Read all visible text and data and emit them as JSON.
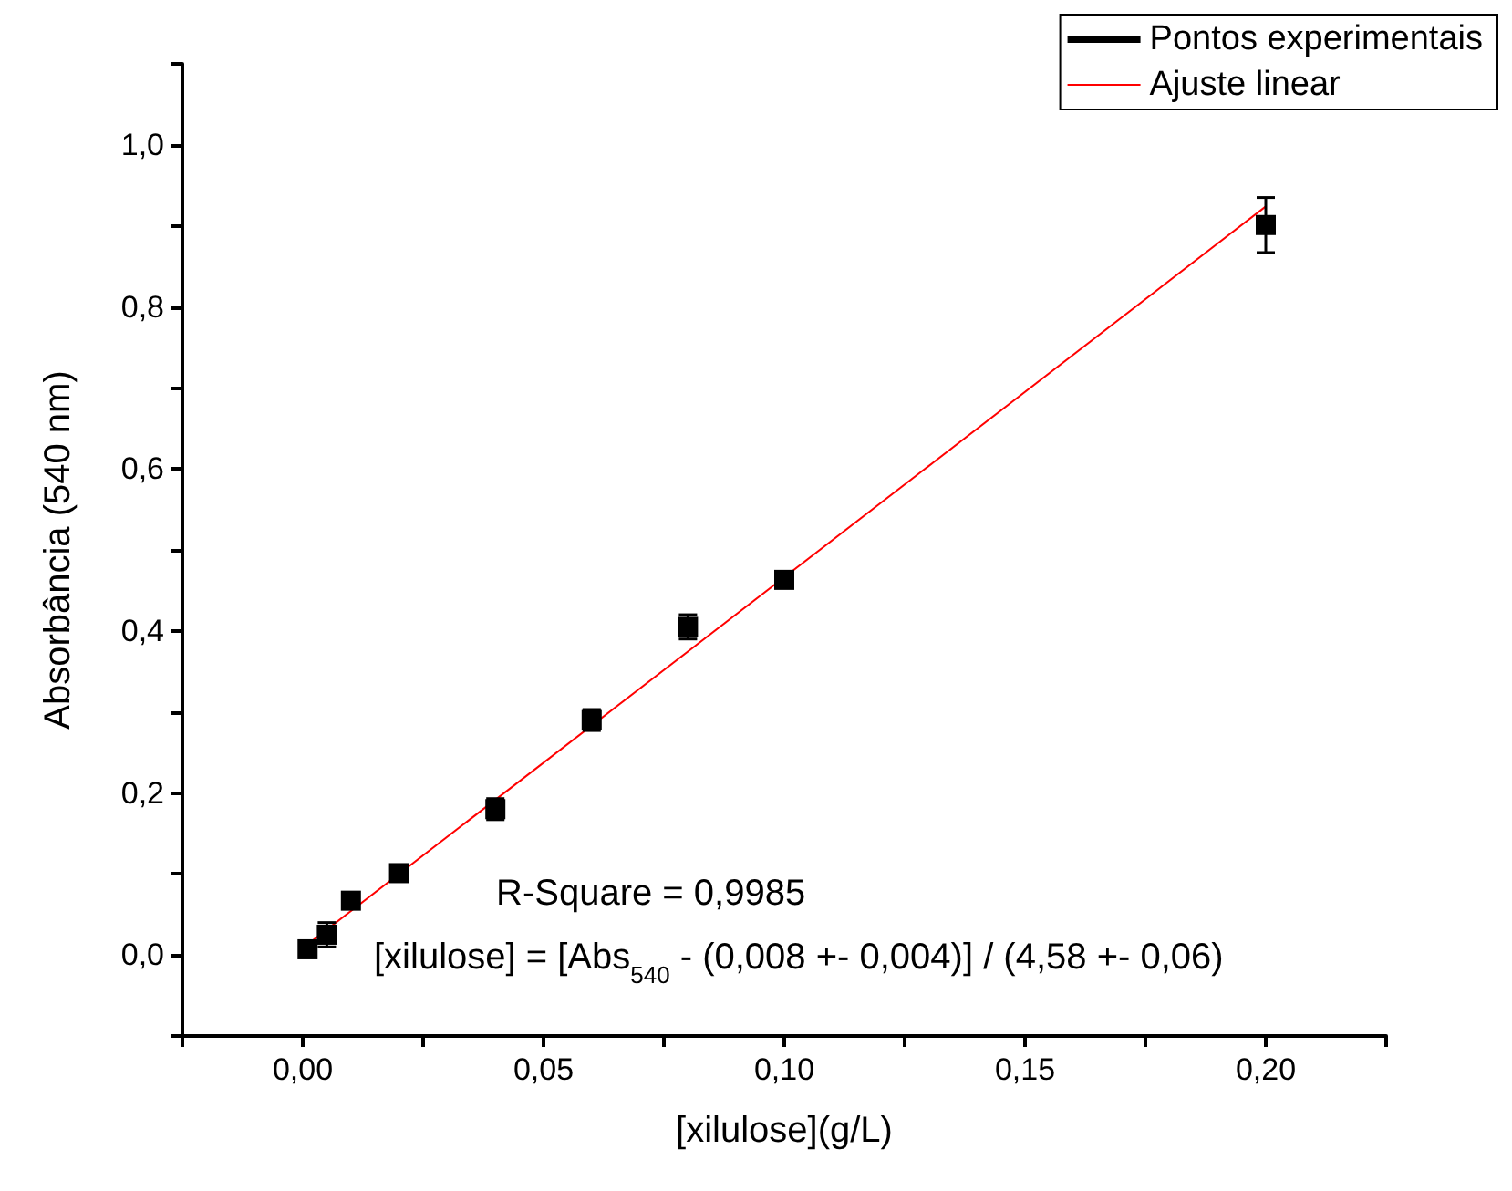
{
  "chart_data": {
    "type": "scatter",
    "xlabel": "[xilulose](g/L)",
    "ylabel": "Absorbância (540 nm)",
    "annotations": [
      "R-Square = 0,9985",
      "[xilulose] = [Abs$_{540}$ - (0,008 +- 0,004)] / (4,58 +- 0,06)"
    ],
    "series": [
      {
        "name": "Pontos experimentais",
        "color": "#000000",
        "marker": "square",
        "x": [
          0.001,
          0.005,
          0.01,
          0.02,
          0.04,
          0.06,
          0.08,
          0.1,
          0.2
        ],
        "values": [
          0.007,
          0.025,
          0.067,
          0.101,
          0.18,
          0.29,
          0.405,
          0.463,
          0.901
        ],
        "errors": [
          null,
          0.015,
          null,
          null,
          0.013,
          0.013,
          0.015,
          null,
          0.034
        ]
      },
      {
        "name": "Ajuste linear",
        "type": "line",
        "color": "#ff0000",
        "marker": "none",
        "line_style": "solid",
        "x": [
          0.001,
          0.2
        ],
        "values": [
          0.013,
          0.924
        ]
      }
    ],
    "xlim": [
      -0.025,
      0.225
    ],
    "xticks": [
      {
        "value": -0.025,
        "label": null
      },
      {
        "value": 0,
        "label": "0,00"
      },
      {
        "value": 0.025,
        "label": null
      },
      {
        "value": 0.05,
        "label": "0,05"
      },
      {
        "value": 0.075,
        "label": null
      },
      {
        "value": 0.1,
        "label": "0,10"
      },
      {
        "value": 0.125,
        "label": null
      },
      {
        "value": 0.15,
        "label": "0,15"
      },
      {
        "value": 0.175,
        "label": null
      },
      {
        "value": 0.2,
        "label": "0,20"
      },
      {
        "value": 0.225,
        "label": null
      }
    ],
    "ylim": [
      -0.1,
      1.1
    ],
    "yticks": [
      {
        "value": -0.1,
        "label": null
      },
      {
        "value": 0,
        "label": "0,0"
      },
      {
        "value": 0.1,
        "label": null
      },
      {
        "value": 0.2,
        "label": "0,2"
      },
      {
        "value": 0.3,
        "label": null
      },
      {
        "value": 0.4,
        "label": "0,4"
      },
      {
        "value": 0.5,
        "label": null
      },
      {
        "value": 0.6,
        "label": "0,6"
      },
      {
        "value": 0.7,
        "label": null
      },
      {
        "value": 0.8,
        "label": "0,8"
      },
      {
        "value": 0.9,
        "label": null
      },
      {
        "value": 1.0,
        "label": "1,0"
      },
      {
        "value": 1.1,
        "label": null
      }
    ],
    "grid": false,
    "legend": "top right"
  }
}
